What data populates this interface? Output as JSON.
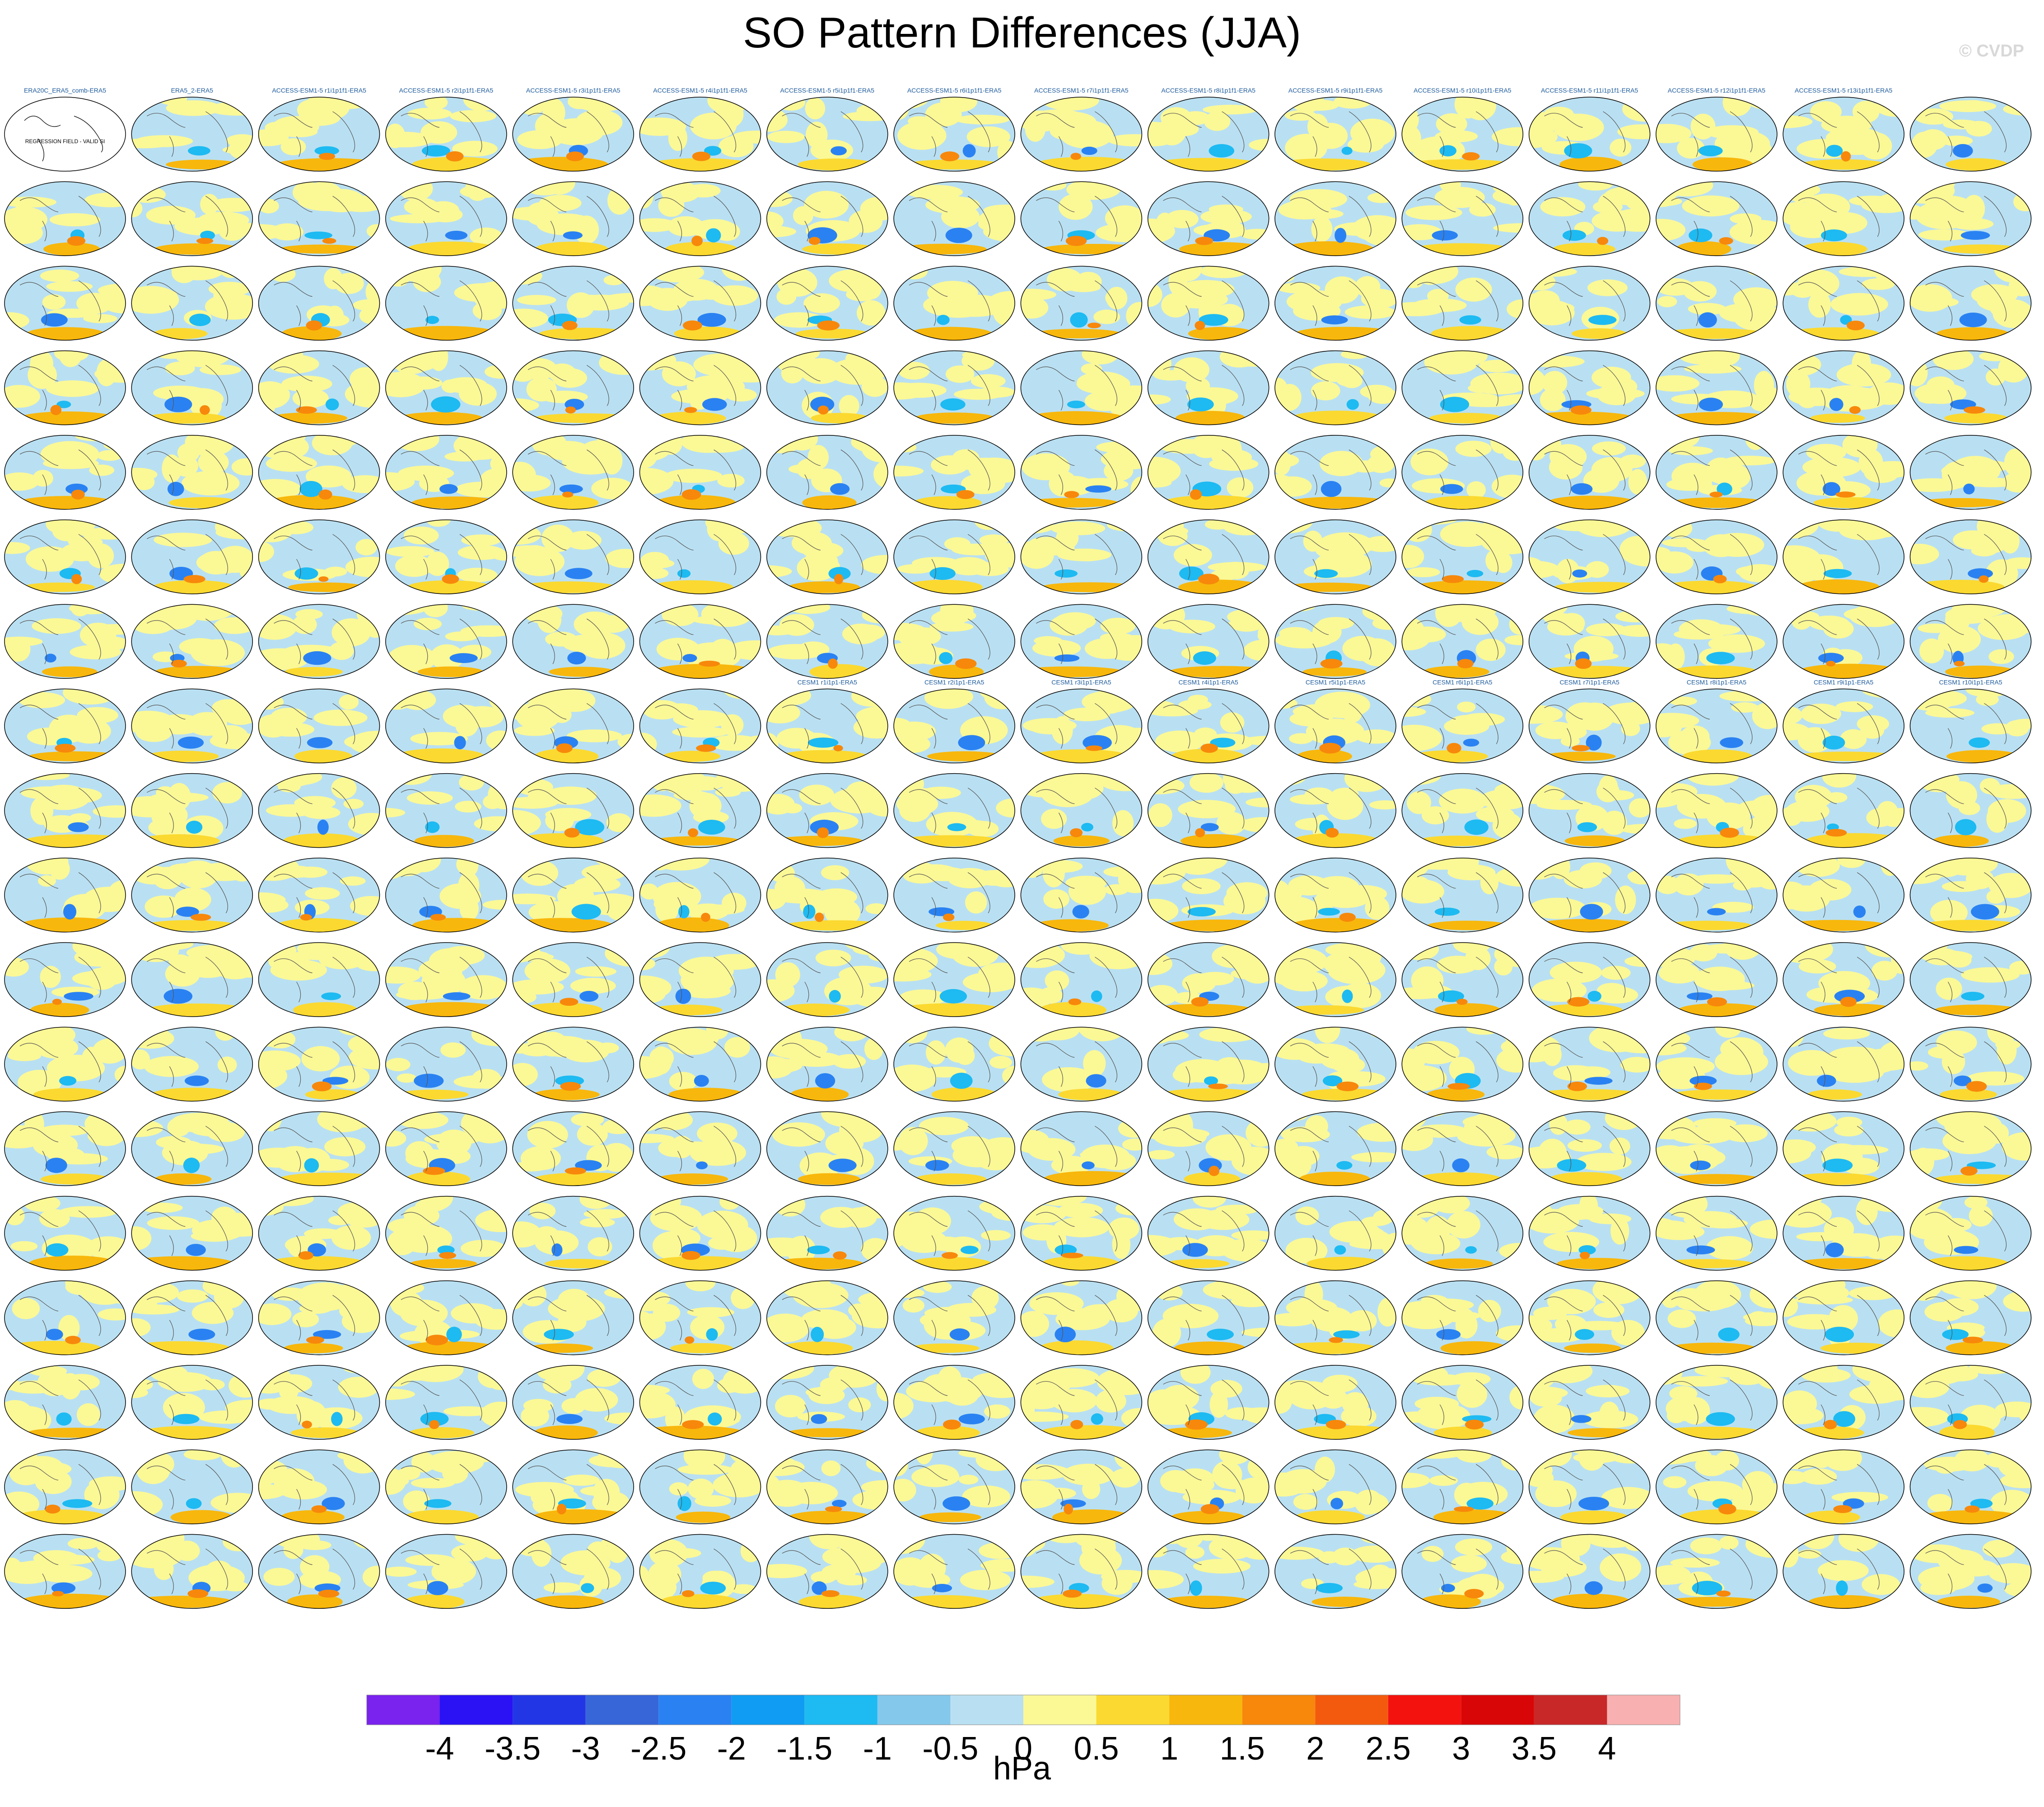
{
  "title": "SO Pattern Differences (JJA)",
  "watermark": "© CVDP",
  "units": "hPa",
  "colorbar": {
    "ticks": [
      "-4",
      "-3.5",
      "-3",
      "-2.5",
      "-2",
      "-1.5",
      "-1",
      "-0.5",
      "0",
      "0.5",
      "1",
      "1.5",
      "2",
      "2.5",
      "3",
      "3.5",
      "4"
    ],
    "colors": [
      "#7a22ee",
      "#2a12f5",
      "#2336e6",
      "#3766d9",
      "#2a82f2",
      "#0f9cf2",
      "#1ebaf2",
      "#84c8ec",
      "#b9e0f2",
      "#fbf896",
      "#fbd930",
      "#f8b70c",
      "#f7880b",
      "#f45a0e",
      "#f4120f",
      "#d80606",
      "#c82828",
      "#f9b0b0"
    ]
  },
  "chart_data": {
    "type": "heatmap",
    "description_rows": 18,
    "description_cols": 16,
    "panel_labels": {
      "row1": [
        "ERA20C_ERA5_comb-ERA5",
        "ERA5_2-ERA5",
        "ACCESS-ESM1-5 r1i1p1f1-ERA5",
        "ACCESS-ESM1-5 r2i1p1f1-ERA5",
        "ACCESS-ESM1-5 r3i1p1f1-ERA5",
        "ACCESS-ESM1-5 r4i1p1f1-ERA5",
        "ACCESS-ESM1-5 r5i1p1f1-ERA5",
        "ACCESS-ESM1-5 r6i1p1f1-ERA5",
        "ACCESS-ESM1-5 r7i1p1f1-ERA5",
        "ACCESS-ESM1-5 r8i1p1f1-ERA5",
        "ACCESS-ESM1-5 r9i1p1f1-ERA5",
        "ACCESS-ESM1-5 r10i1p1f1-ERA5",
        "ACCESS-ESM1-5 r11i1p1f1-ERA5",
        "ACCESS-ESM1-5 r12i1p1f1-ERA5",
        "ACCESS-ESM1-5 r13i1p1f1-ERA5"
      ],
      "row8_cesm": [
        "CESM1 r1i1p1-ERA5",
        "CESM1 r2i1p1-ERA5",
        "CESM1 r3i1p1-ERA5",
        "CESM1 r4i1p1-ERA5",
        "CESM1 r5i1p1-ERA5",
        "CESM1 r6i1p1-ERA5",
        "CESM1 r7i1p1-ERA5",
        "CESM1 r8i1p1-ERA5",
        "CESM1 r9i1p1-ERA5",
        "CESM1 r10i1p1-ERA5"
      ]
    },
    "first_panel_note": "REGRESSION FIELD - VALID SI",
    "zlim": [
      -4,
      4
    ]
  }
}
